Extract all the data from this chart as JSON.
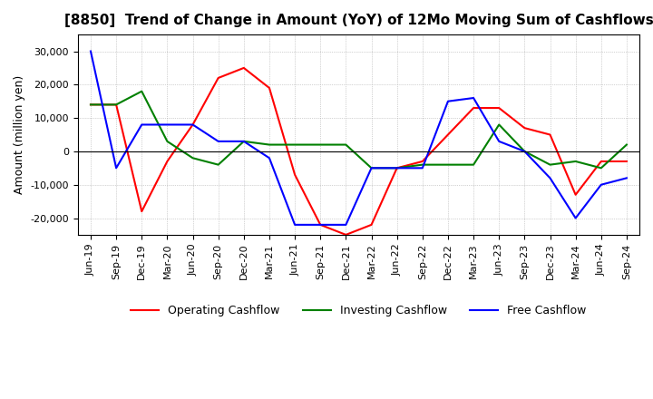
{
  "title": "[8850]  Trend of Change in Amount (YoY) of 12Mo Moving Sum of Cashflows",
  "ylabel": "Amount (million yen)",
  "ylim": [
    -25000,
    35000
  ],
  "yticks": [
    -20000,
    -10000,
    0,
    10000,
    20000,
    30000
  ],
  "background_color": "#ffffff",
  "grid_color": "#aaaaaa",
  "x_labels": [
    "Jun-19",
    "Sep-19",
    "Dec-19",
    "Mar-20",
    "Jun-20",
    "Sep-20",
    "Dec-20",
    "Mar-21",
    "Jun-21",
    "Sep-21",
    "Dec-21",
    "Mar-22",
    "Jun-22",
    "Sep-22",
    "Dec-22",
    "Mar-23",
    "Jun-23",
    "Sep-23",
    "Dec-23",
    "Mar-24",
    "Jun-24",
    "Sep-24"
  ],
  "operating_cashflow": [
    14000,
    14000,
    -18000,
    -3000,
    8000,
    22000,
    25000,
    19000,
    -7000,
    -22000,
    -25000,
    -22000,
    -5000,
    -3000,
    5000,
    13000,
    13000,
    7000,
    5000,
    -13000,
    -3000,
    -3000
  ],
  "investing_cashflow": [
    14000,
    14000,
    18000,
    3000,
    -2000,
    -4000,
    3000,
    2000,
    2000,
    2000,
    2000,
    -5000,
    -5000,
    -4000,
    -4000,
    -4000,
    8000,
    0,
    -4000,
    -3000,
    -5000,
    2000
  ],
  "free_cashflow": [
    30000,
    -5000,
    8000,
    8000,
    8000,
    3000,
    3000,
    -2000,
    -22000,
    -22000,
    -22000,
    -5000,
    -5000,
    -5000,
    15000,
    16000,
    3000,
    0,
    -8000,
    -20000,
    -10000,
    -8000
  ],
  "operating_color": "#ff0000",
  "investing_color": "#008000",
  "free_color": "#0000ff",
  "line_width": 1.5
}
